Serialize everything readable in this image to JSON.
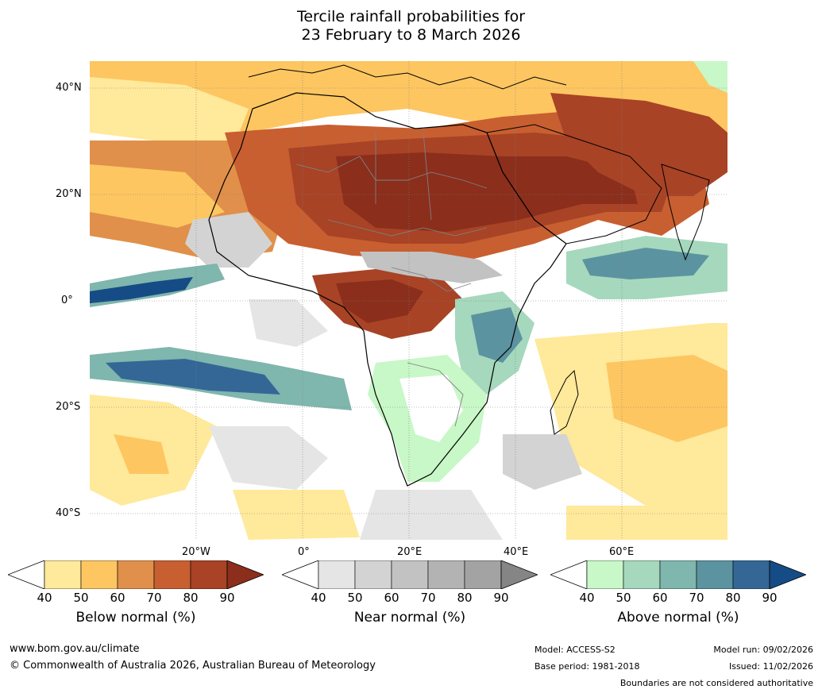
{
  "title_line1": "Tercile rainfall probabilities for",
  "title_line2": "23 February to 8 March 2026",
  "lat_labels": [
    "40°N",
    "20°N",
    "0°",
    "20°S",
    "40°S"
  ],
  "lon_labels": [
    "20°W",
    "0°",
    "20°E",
    "40°E",
    "60°E"
  ],
  "colorbars": [
    {
      "title": "Below normal (%)",
      "ticks": [
        "40",
        "50",
        "60",
        "70",
        "80",
        "90"
      ],
      "colors": [
        "#ffe99a",
        "#fdc661",
        "#e0904a",
        "#c85f30",
        "#a84326",
        "#8b2e1c"
      ]
    },
    {
      "title": "Near normal (%)",
      "ticks": [
        "40",
        "50",
        "60",
        "70",
        "80",
        "90"
      ],
      "colors": [
        "#e5e5e5",
        "#d3d3d3",
        "#c2c2c2",
        "#b3b3b3",
        "#a3a3a3",
        "#858585"
      ]
    },
    {
      "title": "Above normal (%)",
      "ticks": [
        "40",
        "50",
        "60",
        "70",
        "80",
        "90"
      ],
      "colors": [
        "#c8f7c8",
        "#a5d8bd",
        "#7fb6ad",
        "#5b93a0",
        "#346796",
        "#154c86"
      ]
    }
  ],
  "footer": {
    "url": "www.bom.gov.au/climate",
    "copyright": "© Commonwealth of Australia 2026, Australian Bureau of Meteorology",
    "model": "Model: ACCESS-S2",
    "base_period": "Base period: 1981-2018",
    "model_run": "Model run: 09/02/2026",
    "issued": "Issued: 11/02/2026",
    "boundaries": "Boundaries are not considered authoritative"
  }
}
